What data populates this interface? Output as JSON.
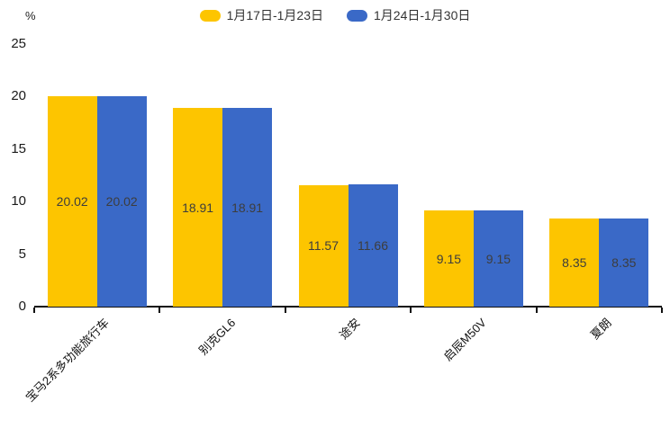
{
  "chart_data": {
    "type": "bar",
    "title": "",
    "xlabel": "",
    "ylabel": "%",
    "categories": [
      "宝马2系多功能旅行车",
      "别克GL6",
      "途安",
      "启辰M50V",
      "夏朗"
    ],
    "series": [
      {
        "name": "1月17日-1月23日",
        "color": "#FDC500",
        "values": [
          20.02,
          18.91,
          11.57,
          9.15,
          8.35
        ]
      },
      {
        "name": "1月24日-1月30日",
        "color": "#3A69C7",
        "values": [
          20.02,
          18.91,
          11.66,
          9.15,
          8.35
        ]
      }
    ],
    "ylim": [
      0,
      25
    ],
    "yticks": [
      0,
      5,
      10,
      15,
      20,
      25
    ],
    "grid": false,
    "legend_position": "top-center",
    "value_labels": "inside-middle",
    "value_label_decimals": 2
  },
  "colors": {
    "background": "#ffffff",
    "axis": "#111111",
    "tick_text": "#1a1a1a",
    "bar_value_text": "#3d3d3d",
    "legend_text": "#333333"
  }
}
